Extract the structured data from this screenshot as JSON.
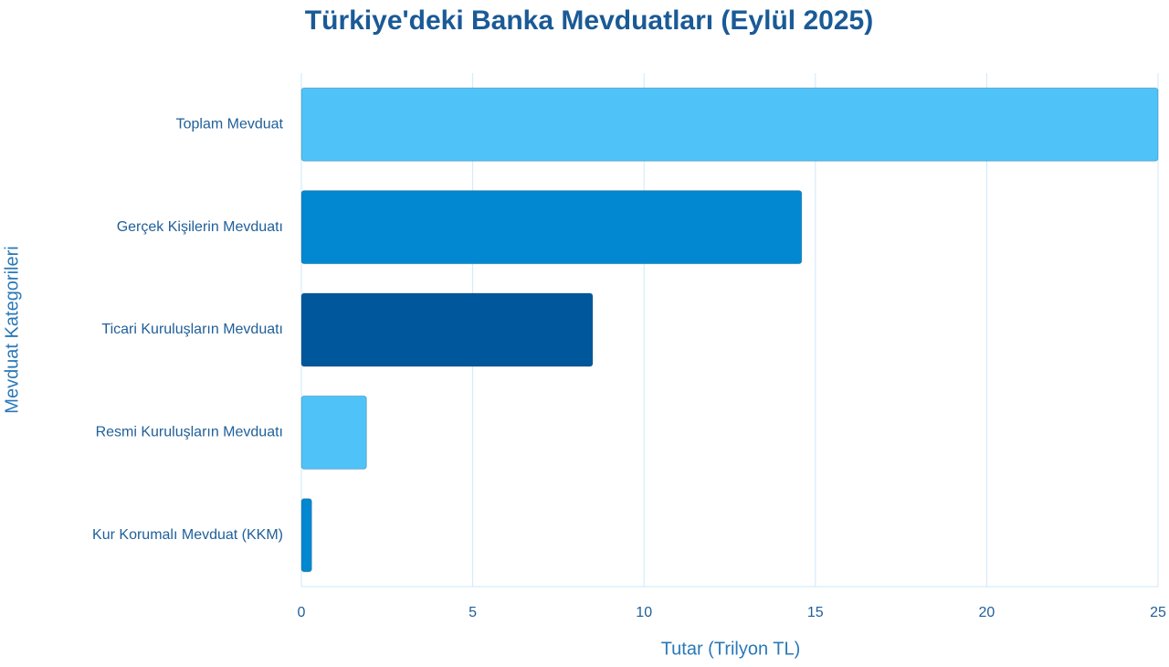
{
  "chart_data": {
    "type": "bar",
    "orientation": "horizontal",
    "title": "Türkiye'deki Banka Mevduatları (Eylül 2025)",
    "x_label": "Tutar (Trilyon TL)",
    "y_label": "Mevduat Kategorileri",
    "categories": [
      "Toplam Mevduat",
      "Gerçek Kişilerin Mevduatı",
      "Ticari Kuruluşların Mevduatı",
      "Resmi Kuruluşların Mevduatı",
      "Kur Korumalı Mevduat (KKM)"
    ],
    "values": [
      25,
      14.6,
      8.5,
      1.9,
      0.3
    ],
    "colors": [
      "#4fc3f7",
      "#0288d1",
      "#01579b",
      "#4fc3f7",
      "#0288d1"
    ],
    "xlim": [
      0,
      25
    ],
    "xticks": [
      0,
      5,
      10,
      15,
      20,
      25
    ],
    "grid": true
  }
}
